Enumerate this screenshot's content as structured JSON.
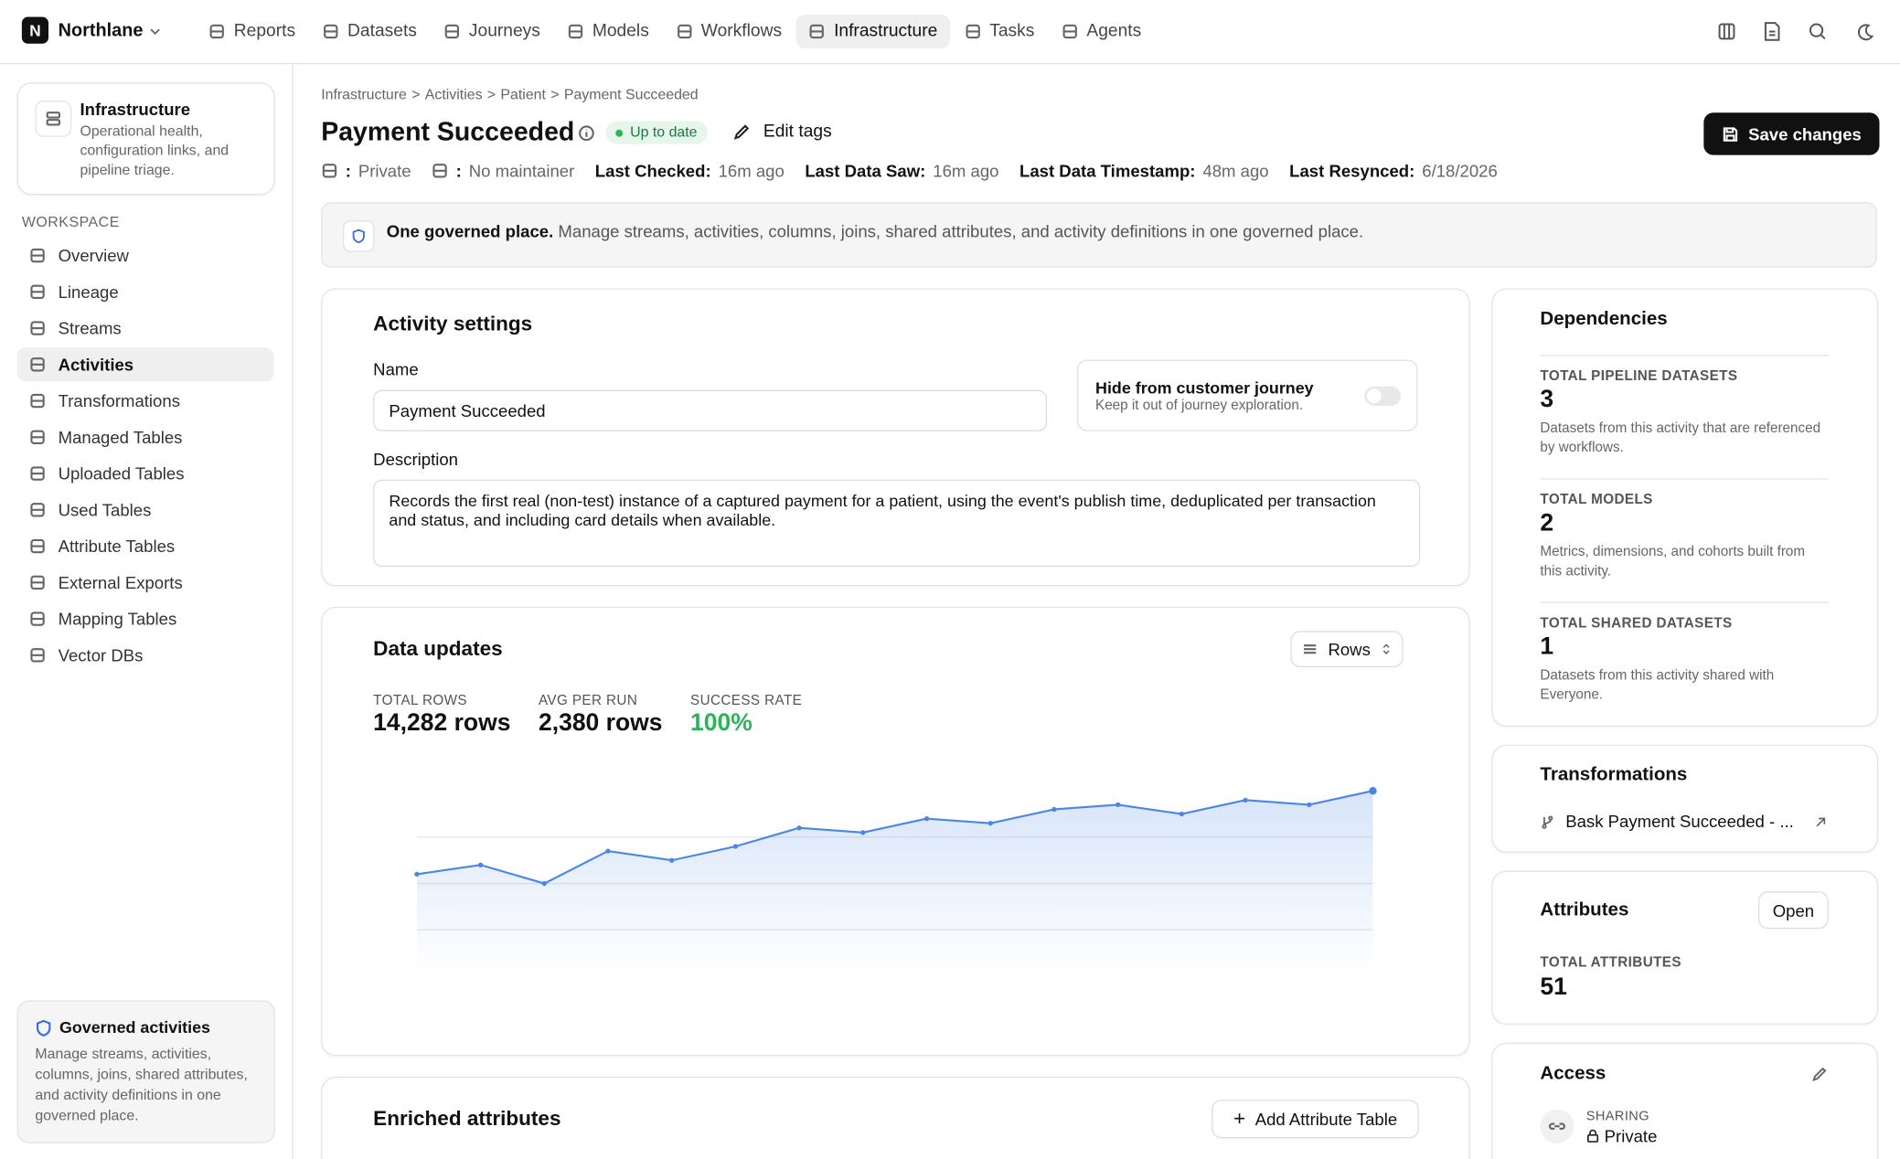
{
  "brand": {
    "initial": "N",
    "name": "Northlane"
  },
  "nav": {
    "items": [
      "Reports",
      "Datasets",
      "Journeys",
      "Models",
      "Workflows",
      "Infrastructure",
      "Tasks",
      "Agents"
    ],
    "active": 5
  },
  "sidebar": {
    "title": "Infrastructure",
    "description": "Operational health, configuration links, and pipeline triage.",
    "section": "WORKSPACE",
    "items": [
      "Overview",
      "Lineage",
      "Streams",
      "Activities",
      "Transformations",
      "Managed Tables",
      "Uploaded Tables",
      "Used Tables",
      "Attribute Tables",
      "External Exports",
      "Mapping Tables",
      "Vector DBs"
    ],
    "active": 3,
    "footer": {
      "title": "Governed activities",
      "text": "Manage streams, activities, columns, joins, shared attributes, and activity definitions in one governed place."
    }
  },
  "breadcrumb": {
    "items": [
      "Infrastructure",
      "Activities",
      "Patient",
      "Payment Succeeded"
    ],
    "separator": ">"
  },
  "header": {
    "title": "Payment Succeeded",
    "status": "Up to date",
    "edit_tags": "Edit tags",
    "save": "Save changes",
    "meta": [
      {
        "label": ":",
        "value": "Private"
      },
      {
        "label": ":",
        "value": "No maintainer"
      },
      {
        "label": "Last Checked:",
        "value": "16m ago"
      },
      {
        "label": "Last Data Saw:",
        "value": "16m ago"
      },
      {
        "label": "Last Data Timestamp:",
        "value": "48m ago"
      },
      {
        "label": "Last Resynced:",
        "value": "6/18/2026"
      }
    ]
  },
  "banner": {
    "title": "One governed place.",
    "text": "Manage streams, activities, columns, joins, shared attributes, and activity definitions in one governed place."
  },
  "activity_settings": {
    "title": "Activity settings",
    "name_label": "Name",
    "name_value": "Payment Succeeded",
    "hide_title": "Hide from customer journey",
    "hide_text": "Keep it out of journey exploration.",
    "description_label": "Description",
    "description_value": "Records the first real (non-test) instance of a captured payment for a patient, using the event's publish time, deduplicated per transaction and status, and including card details when available."
  },
  "data_updates": {
    "title": "Data updates",
    "toggle": "Rows",
    "stats": [
      {
        "label": "TOTAL ROWS",
        "value": "14,282 rows"
      },
      {
        "label": "AVG PER RUN",
        "value": "2,380 rows"
      },
      {
        "label": "SUCCESS RATE",
        "value": "100%"
      }
    ],
    "chart": {
      "type": "area",
      "color": "#4a86e8",
      "values": [
        2.2,
        2.4,
        2.0,
        2.7,
        2.5,
        2.8,
        3.2,
        3.1,
        3.4,
        3.3,
        3.6,
        3.7,
        3.5,
        3.8,
        3.7,
        4.0
      ],
      "ylim": [
        0,
        4
      ],
      "yticks": [
        1,
        2,
        3
      ],
      "grid": true
    }
  },
  "enriched": {
    "title": "Enriched attributes",
    "button": "Add Attribute Table"
  },
  "dependencies": {
    "title": "Dependencies",
    "items": [
      {
        "label": "TOTAL PIPELINE DATASETS",
        "value": "3",
        "text": "Datasets from this activity that are referenced by workflows."
      },
      {
        "label": "TOTAL MODELS",
        "value": "2",
        "text": "Metrics, dimensions, and cohorts built from this activity."
      },
      {
        "label": "TOTAL SHARED DATASETS",
        "value": "1",
        "text": "Datasets from this activity shared with Everyone."
      }
    ]
  },
  "transformations": {
    "title": "Transformations",
    "item": "Bask Payment Succeeded - ..."
  },
  "attributes": {
    "title": "Attributes",
    "button": "Open",
    "label": "TOTAL ATTRIBUTES",
    "value": "51"
  },
  "access": {
    "title": "Access",
    "label": "SHARING",
    "value": "Private"
  }
}
